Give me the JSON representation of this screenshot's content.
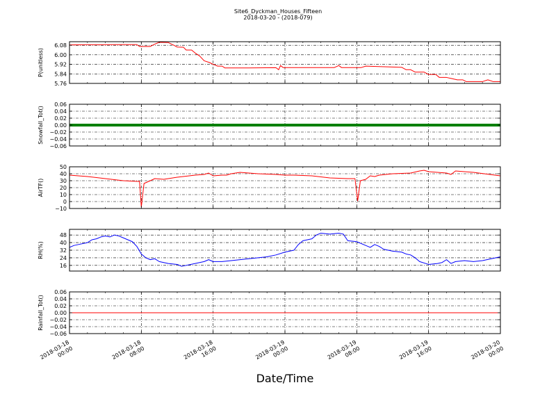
{
  "chart_data": {
    "type": "line",
    "title": "Site6_Dyckman_Houses_Fifteen",
    "subtitle": "2018-03-20 - (2018-079)",
    "xlabel": "Date/Time",
    "xtick_labels": [
      [
        "2018-03-18",
        "00:00"
      ],
      [
        "2018-03-18",
        "08:00"
      ],
      [
        "2018-03-18",
        "16:00"
      ],
      [
        "2018-03-19",
        "00:00"
      ],
      [
        "2018-03-19",
        "08:00"
      ],
      [
        "2018-03-19",
        "16:00"
      ],
      [
        "2018-03-20",
        "00:00"
      ]
    ],
    "xlim_hours": [
      0,
      48
    ],
    "grid": true,
    "grid_style": "dash-dot",
    "panels": [
      {
        "ylabel": "P(unitless)",
        "color": "#ff0000",
        "ylim": [
          5.76,
          6.11
        ],
        "ticks": [
          5.76,
          5.84,
          5.92,
          6.0,
          6.08
        ],
        "tick_labels": [
          "5.76",
          "5.84",
          "5.92",
          "6.00",
          "6.08"
        ],
        "series": [
          [
            0,
            6.083
          ],
          [
            2,
            6.085
          ],
          [
            4,
            6.085
          ],
          [
            6,
            6.086
          ],
          [
            7.5,
            6.086
          ],
          [
            7.8,
            6.07
          ],
          [
            9,
            6.07
          ],
          [
            9.5,
            6.09
          ],
          [
            10,
            6.105
          ],
          [
            11,
            6.103
          ],
          [
            11.5,
            6.085
          ],
          [
            12,
            6.065
          ],
          [
            12.7,
            6.063
          ],
          [
            13,
            6.04
          ],
          [
            13.6,
            6.04
          ],
          [
            14,
            6.015
          ],
          [
            14.5,
            5.99
          ],
          [
            15,
            5.95
          ],
          [
            15.6,
            5.935
          ],
          [
            16,
            5.92
          ],
          [
            16.5,
            5.905
          ],
          [
            17,
            5.905
          ],
          [
            17.3,
            5.89
          ],
          [
            20,
            5.89
          ],
          [
            23,
            5.892
          ],
          [
            23.3,
            5.875
          ],
          [
            23.5,
            5.91
          ],
          [
            23.8,
            5.893
          ],
          [
            28,
            5.893
          ],
          [
            29.5,
            5.893
          ],
          [
            30,
            5.91
          ],
          [
            30.3,
            5.893
          ],
          [
            32.5,
            5.893
          ],
          [
            33,
            5.905
          ],
          [
            35,
            5.9
          ],
          [
            37,
            5.895
          ],
          [
            37.5,
            5.875
          ],
          [
            38,
            5.875
          ],
          [
            38.5,
            5.855
          ],
          [
            39.5,
            5.855
          ],
          [
            40,
            5.835
          ],
          [
            40.8,
            5.835
          ],
          [
            41.2,
            5.81
          ],
          [
            42,
            5.81
          ],
          [
            42.6,
            5.8
          ],
          [
            43.2,
            5.79
          ],
          [
            43.8,
            5.79
          ],
          [
            44.2,
            5.775
          ],
          [
            46,
            5.775
          ],
          [
            46.6,
            5.79
          ],
          [
            47.2,
            5.775
          ],
          [
            48,
            5.775
          ]
        ]
      },
      {
        "ylabel": "Snowfall_Tot()",
        "color": "#008000",
        "ylim": [
          -0.06,
          0.06
        ],
        "ticks": [
          -0.06,
          -0.04,
          -0.02,
          0.0,
          0.02,
          0.04,
          0.06
        ],
        "tick_labels": [
          "−0.06",
          "−0.04",
          "−0.02",
          "0.00",
          "0.02",
          "0.04",
          "0.06"
        ],
        "line_width": 4,
        "series": [
          [
            0,
            0
          ],
          [
            48,
            0
          ]
        ]
      },
      {
        "ylabel": "AirTF()",
        "color": "#ff0000",
        "ylim": [
          -10,
          50
        ],
        "ticks": [
          -10,
          0,
          10,
          20,
          30,
          40,
          50
        ],
        "tick_labels": [
          "−10",
          "0",
          "10",
          "20",
          "30",
          "40",
          "50"
        ],
        "series": [
          [
            0,
            38
          ],
          [
            2,
            36
          ],
          [
            4,
            33
          ],
          [
            6,
            30
          ],
          [
            7.5,
            29
          ],
          [
            7.8,
            29
          ],
          [
            8.0,
            -8
          ],
          [
            8.3,
            26
          ],
          [
            9,
            30
          ],
          [
            9.5,
            33
          ],
          [
            10.5,
            32
          ],
          [
            12,
            35
          ],
          [
            14,
            38
          ],
          [
            15,
            39
          ],
          [
            15.5,
            41
          ],
          [
            16,
            37
          ],
          [
            17,
            38
          ],
          [
            17.5,
            38
          ],
          [
            18,
            40
          ],
          [
            19,
            42
          ],
          [
            21,
            40
          ],
          [
            23,
            39
          ],
          [
            24,
            38
          ],
          [
            25,
            38
          ],
          [
            27,
            37
          ],
          [
            29,
            34
          ],
          [
            31,
            33
          ],
          [
            31.8,
            33
          ],
          [
            32.1,
            1
          ],
          [
            32.4,
            30
          ],
          [
            33,
            32
          ],
          [
            33.5,
            37
          ],
          [
            34,
            36
          ],
          [
            34.5,
            38
          ],
          [
            36,
            40
          ],
          [
            38,
            41
          ],
          [
            39,
            44
          ],
          [
            39.5,
            45
          ],
          [
            40,
            43
          ],
          [
            41,
            42
          ],
          [
            42,
            41
          ],
          [
            42.5,
            39
          ],
          [
            43,
            44
          ],
          [
            45,
            42
          ],
          [
            48,
            37
          ]
        ]
      },
      {
        "ylabel": "RH(%)",
        "color": "#0000ff",
        "ylim": [
          10,
          54
        ],
        "ticks": [
          16,
          24,
          32,
          40,
          48
        ],
        "tick_labels": [
          "16",
          "24",
          "32",
          "40",
          "48"
        ],
        "series": [
          [
            0,
            35
          ],
          [
            0.5,
            37
          ],
          [
            1,
            38
          ],
          [
            2,
            40
          ],
          [
            2.5,
            43
          ],
          [
            3,
            44
          ],
          [
            3.5,
            46
          ],
          [
            4,
            47
          ],
          [
            4.5,
            46
          ],
          [
            5,
            48
          ],
          [
            5.5,
            47
          ],
          [
            6,
            45
          ],
          [
            7,
            41
          ],
          [
            7.5,
            36
          ],
          [
            8,
            28
          ],
          [
            8.5,
            24
          ],
          [
            9,
            22
          ],
          [
            9.5,
            23
          ],
          [
            10,
            20
          ],
          [
            11,
            18
          ],
          [
            12,
            17
          ],
          [
            12.5,
            15
          ],
          [
            13,
            16
          ],
          [
            14,
            18
          ],
          [
            15,
            20
          ],
          [
            15.5,
            22
          ],
          [
            16,
            20
          ],
          [
            17,
            20
          ],
          [
            18,
            21
          ],
          [
            19,
            22
          ],
          [
            20,
            23
          ],
          [
            21,
            24
          ],
          [
            22,
            25
          ],
          [
            23,
            27
          ],
          [
            24,
            30
          ],
          [
            24.5,
            31
          ],
          [
            25,
            32
          ],
          [
            25.5,
            38
          ],
          [
            26,
            42
          ],
          [
            27,
            44
          ],
          [
            27.5,
            48
          ],
          [
            28,
            50
          ],
          [
            29,
            49
          ],
          [
            30,
            50
          ],
          [
            30.5,
            49
          ],
          [
            31,
            42
          ],
          [
            32,
            41
          ],
          [
            33,
            37
          ],
          [
            33.5,
            35
          ],
          [
            34,
            38
          ],
          [
            34.5,
            36
          ],
          [
            35,
            33
          ],
          [
            36,
            31
          ],
          [
            37,
            30
          ],
          [
            37.5,
            28
          ],
          [
            38,
            27
          ],
          [
            38.5,
            24
          ],
          [
            39,
            20
          ],
          [
            40,
            17
          ],
          [
            41,
            18
          ],
          [
            41.5,
            19
          ],
          [
            42,
            22
          ],
          [
            42.5,
            18
          ],
          [
            43,
            20
          ],
          [
            44,
            21
          ],
          [
            45,
            20
          ],
          [
            46,
            21
          ],
          [
            47,
            23
          ],
          [
            47.5,
            24
          ],
          [
            48,
            25
          ]
        ]
      },
      {
        "ylabel": "Rainfall_Tot()",
        "color": "#ff0000",
        "ylim": [
          -0.06,
          0.06
        ],
        "ticks": [
          -0.06,
          -0.04,
          -0.02,
          0.0,
          0.02,
          0.04,
          0.06
        ],
        "tick_labels": [
          "−0.06",
          "−0.04",
          "−0.02",
          "0.00",
          "0.02",
          "0.04",
          "0.06"
        ],
        "series": [
          [
            0,
            0
          ],
          [
            48,
            0
          ]
        ]
      }
    ]
  }
}
